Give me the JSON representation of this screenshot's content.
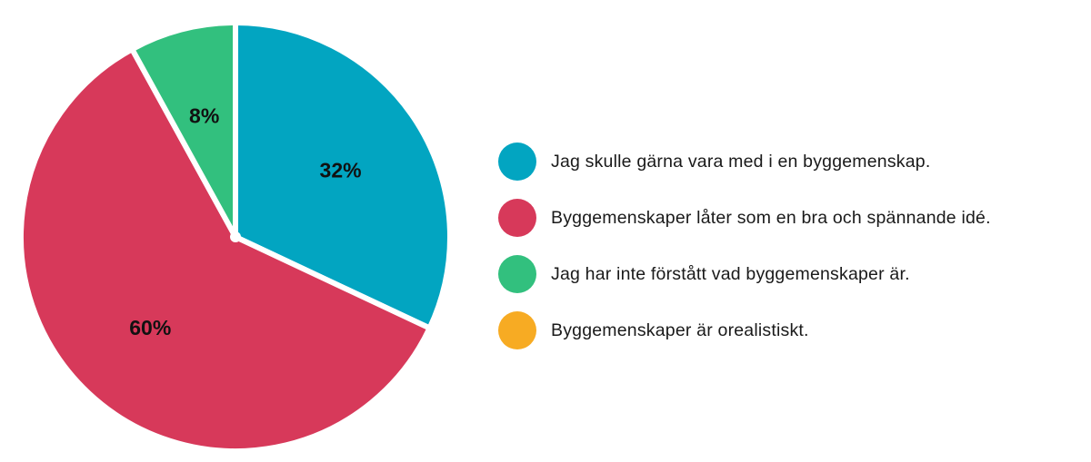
{
  "chart_data": {
    "type": "pie",
    "slices": [
      {
        "label": "Jag skulle gärna vara med i en byggemenskap.",
        "value": 32,
        "display": "32%",
        "color": "#02a5c1"
      },
      {
        "label": "Byggemenskaper låter som en bra och spännande idé.",
        "value": 60,
        "display": "60%",
        "color": "#d7395a"
      },
      {
        "label": "Jag har inte förstått vad byggemenskaper är.",
        "value": 8,
        "display": "8%",
        "color": "#32c07e"
      },
      {
        "label": "Byggemenskaper är orealistiskt.",
        "value": 0,
        "display": "",
        "color": "#f7ab23"
      }
    ],
    "legend_position": "right"
  }
}
